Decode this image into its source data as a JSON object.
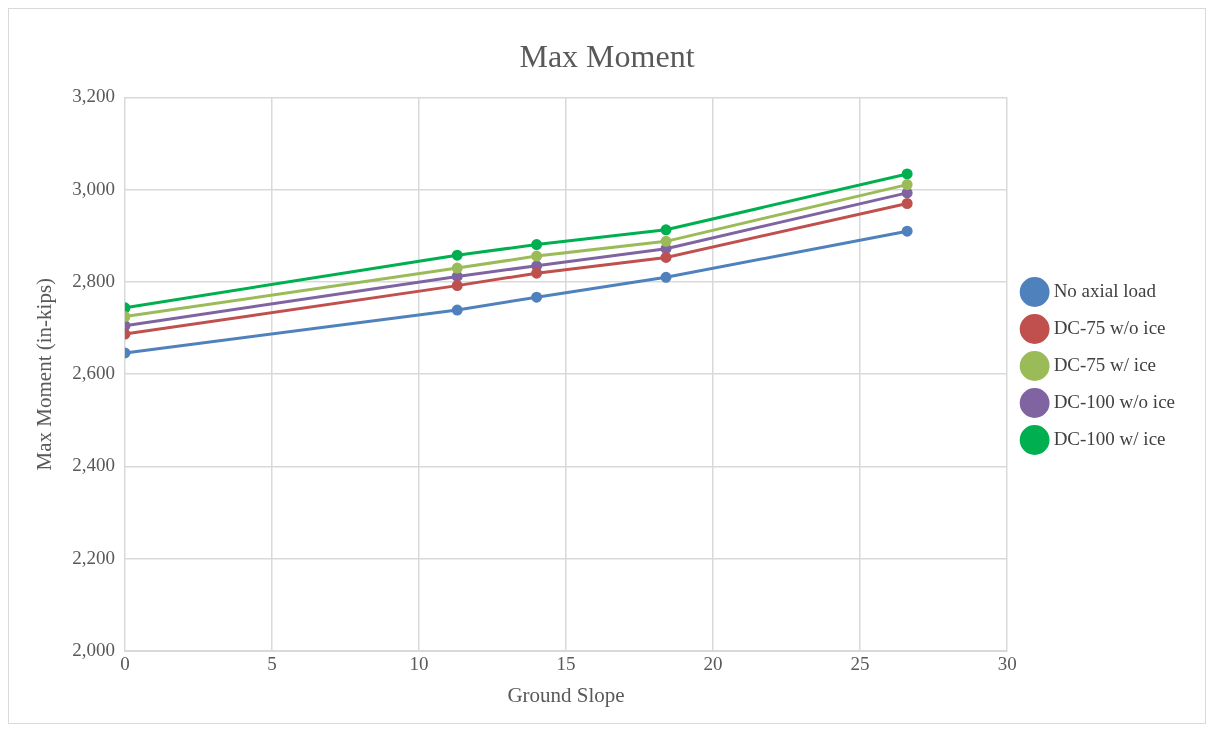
{
  "chart_data": {
    "type": "line",
    "title": "Max Moment",
    "xlabel": "Ground Slope",
    "ylabel": "Max Moment (in-kips)",
    "x": [
      0,
      11.3,
      14,
      18.4,
      26.6
    ],
    "series": [
      {
        "name": "No axial load",
        "color": "#4f81bd",
        "values": [
          2646,
          2739,
          2767,
          2810,
          2910
        ]
      },
      {
        "name": "DC-75 w/o ice",
        "color": "#c0504d",
        "values": [
          2687,
          2792,
          2819,
          2853,
          2970
        ]
      },
      {
        "name": "DC-75 w/ ice",
        "color": "#9bbb59",
        "values": [
          2725,
          2830,
          2856,
          2888,
          3011
        ]
      },
      {
        "name": "DC-100 w/o ice",
        "color": "#8064a2",
        "values": [
          2705,
          2812,
          2835,
          2872,
          2993
        ]
      },
      {
        "name": "DC-100 w/ ice",
        "color": "#00b050",
        "values": [
          2744,
          2858,
          2881,
          2913,
          3034
        ]
      }
    ],
    "xlim": [
      0,
      30
    ],
    "xticks": [
      0,
      5,
      10,
      15,
      20,
      25,
      30
    ],
    "ylim": [
      2000,
      3200
    ],
    "yticks": [
      {
        "value": 2000,
        "label": "2,000"
      },
      {
        "value": 2200,
        "label": "2,200"
      },
      {
        "value": 2400,
        "label": "2,400"
      },
      {
        "value": 2600,
        "label": "2,600"
      },
      {
        "value": 2800,
        "label": "2,800"
      },
      {
        "value": 3000,
        "label": "3,000"
      },
      {
        "value": 3200,
        "label": "3,200"
      }
    ],
    "grid": true,
    "legend": "right",
    "marker": "circle",
    "line_style": "solid"
  }
}
